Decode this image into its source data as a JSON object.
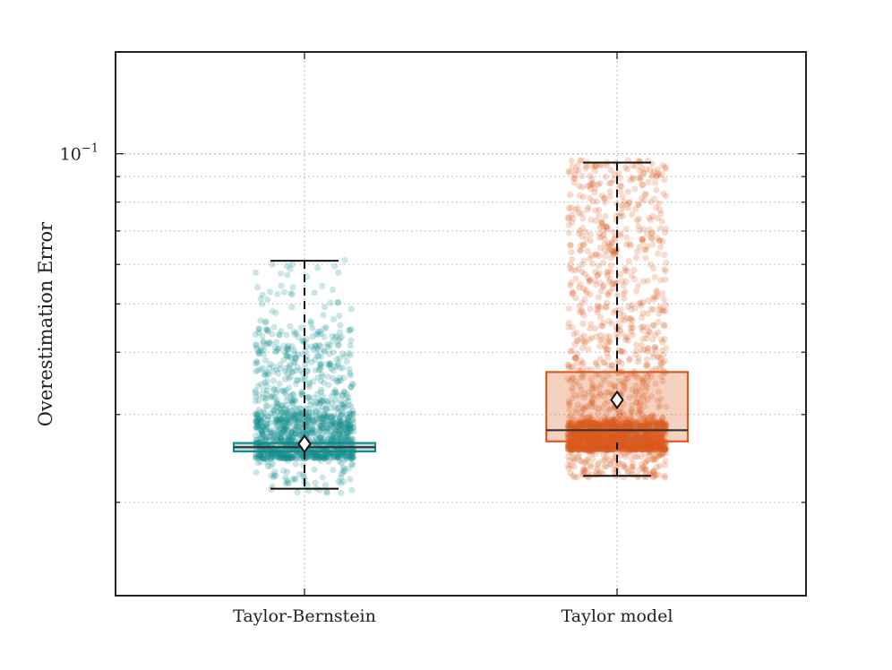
{
  "chart_data": {
    "type": "box",
    "title": "",
    "xlabel": "",
    "ylabel": "Overestimation Error",
    "yscale": "log",
    "ylim": [
      0.013,
      0.16
    ],
    "grid": true,
    "legend": "none",
    "y_tick_label": {
      "base": "10",
      "exponent": "−1",
      "value": 0.1
    },
    "categories": [
      "Taylor-Bernstein",
      "Taylor model"
    ],
    "boxes": [
      {
        "category": "Taylor-Bernstein",
        "color": "#138c8c",
        "whisker_low": 0.0213,
        "q1": 0.0253,
        "median": 0.0258,
        "q3": 0.0263,
        "whisker_high": 0.061,
        "mean": 0.0262,
        "scatter": {
          "n": 1400,
          "min": 0.0208,
          "max": 0.062,
          "dense_low": 0.0245,
          "dense_high": 0.03,
          "tail": 0.045
        }
      },
      {
        "category": "Taylor model",
        "color": "#dc5a1e",
        "whisker_low": 0.0226,
        "q1": 0.0265,
        "median": 0.0279,
        "q3": 0.0365,
        "whisker_high": 0.096,
        "mean": 0.0321,
        "scatter": {
          "n": 2600,
          "min": 0.0224,
          "max": 0.097,
          "dense_low": 0.0255,
          "dense_high": 0.029,
          "tail": 0.085
        }
      }
    ]
  }
}
